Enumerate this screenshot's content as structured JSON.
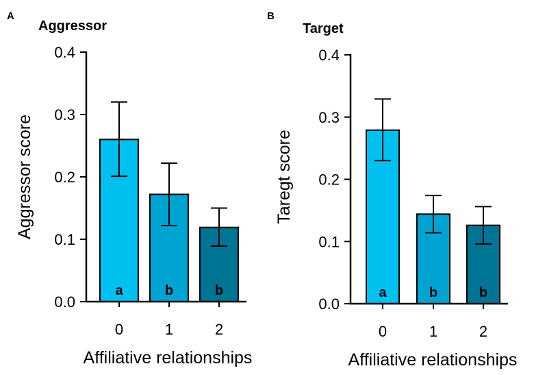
{
  "chart_data": [
    {
      "panel": "A",
      "type": "bar",
      "title": "Aggressor",
      "xlabel": "Affiliative relationships",
      "ylabel": "Aggressor score",
      "ylim": [
        0,
        0.4
      ],
      "yticks": [
        "0.0",
        "0.1",
        "0.2",
        "0.3",
        "0.4"
      ],
      "ytick_values": [
        0,
        0.1,
        0.2,
        0.3,
        0.4
      ],
      "categories": [
        "0",
        "1",
        "2"
      ],
      "values": [
        0.26,
        0.172,
        0.119
      ],
      "error_low": [
        0.201,
        0.122,
        0.089
      ],
      "error_high": [
        0.32,
        0.222,
        0.15
      ],
      "bar_labels": [
        "a",
        "b",
        "b"
      ],
      "colors": [
        "#00c0f0",
        "#00a4d2",
        "#007494"
      ]
    },
    {
      "panel": "B",
      "type": "bar",
      "title": "Target",
      "xlabel": "Affiliative relationships",
      "ylabel": "Taregt score",
      "ylim": [
        0,
        0.4
      ],
      "yticks": [
        "0.0",
        "0.1",
        "0.2",
        "0.3",
        "0.4"
      ],
      "ytick_values": [
        0,
        0.1,
        0.2,
        0.3,
        0.4
      ],
      "categories": [
        "0",
        "1",
        "2"
      ],
      "values": [
        0.279,
        0.144,
        0.126
      ],
      "error_low": [
        0.23,
        0.114,
        0.096
      ],
      "error_high": [
        0.329,
        0.174,
        0.156
      ],
      "bar_labels": [
        "a",
        "b",
        "b"
      ],
      "colors": [
        "#00c0f0",
        "#00a4d2",
        "#007494"
      ]
    }
  ]
}
